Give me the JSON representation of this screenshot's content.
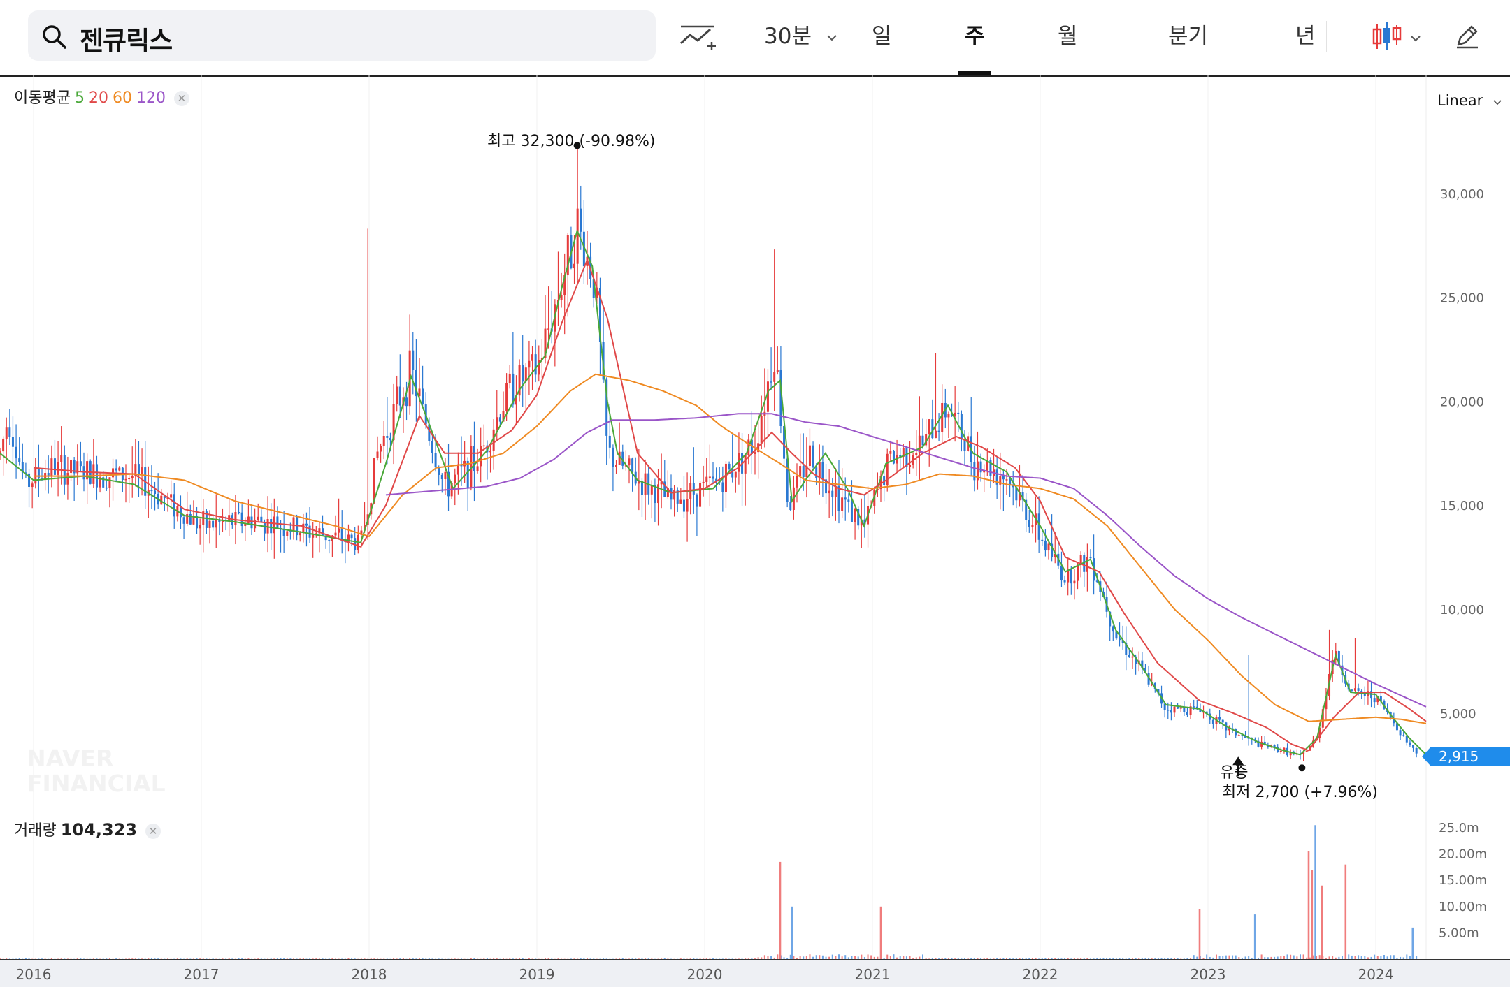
{
  "search": {
    "query": "젠큐릭스"
  },
  "toolbar": {
    "interval_label": "30분",
    "tabs": [
      "일",
      "주",
      "월",
      "분기",
      "년"
    ],
    "active_tab": "주"
  },
  "indicators": {
    "ma_label": "이동평균",
    "ma_periods": [
      {
        "label": "5",
        "color": "#4aa839"
      },
      {
        "label": "20",
        "color": "#e04848"
      },
      {
        "label": "60",
        "color": "#ef8a22"
      },
      {
        "label": "120",
        "color": "#9a55c8"
      }
    ],
    "volume_label": "거래량",
    "volume_value": "104,323"
  },
  "scale": {
    "label": "Linear"
  },
  "current_price": "2,915",
  "annotations": {
    "high": "최고  32,300 (-90.98%)",
    "low": "최저  2,700 (+7.96%)",
    "event": "유증"
  },
  "watermark": [
    "NAVER",
    "FINANCIAL"
  ],
  "colors": {
    "up": "#e63b3b",
    "down": "#2a78d2",
    "ma5": "#4aa839",
    "ma20": "#e04848",
    "ma60": "#ef8a22",
    "ma120": "#9a55c8",
    "accent": "#1f8ceb"
  },
  "chart_data": {
    "type": "candlestick",
    "x_ticks": [
      "2016",
      "2017",
      "2018",
      "2019",
      "2020",
      "2021",
      "2022",
      "2023",
      "2024"
    ],
    "x_tick_pos": [
      2016.0,
      2017.0,
      2018.0,
      2019.0,
      2020.0,
      2021.0,
      2022.0,
      2023.0,
      2024.0
    ],
    "x_range": [
      2015.8,
      2024.3
    ],
    "price_axis": {
      "ticks": [
        5000,
        10000,
        15000,
        20000,
        25000,
        30000
      ],
      "tick_labels": [
        "5,000",
        "10,000",
        "15,000",
        "20,000",
        "25,000",
        "30,000"
      ],
      "ylim": [
        1400,
        35000
      ]
    },
    "volume_axis": {
      "ticks": [
        5,
        10,
        15,
        20,
        25
      ],
      "tick_labels": [
        "5.00m",
        "10.00m",
        "15.00m",
        "20.00m",
        "25.0m"
      ],
      "ylim": [
        0,
        27
      ],
      "unit": "m"
    },
    "price_anchors": [
      [
        2015.8,
        17500
      ],
      [
        2015.85,
        19300
      ],
      [
        2015.95,
        16000
      ],
      [
        2016.1,
        16800
      ],
      [
        2016.35,
        16500
      ],
      [
        2016.6,
        16400
      ],
      [
        2016.8,
        15200
      ],
      [
        2017.0,
        14000
      ],
      [
        2017.3,
        14300
      ],
      [
        2017.6,
        13800
      ],
      [
        2017.95,
        13200
      ],
      [
        2018.05,
        17500
      ],
      [
        2018.25,
        21500
      ],
      [
        2018.45,
        15800
      ],
      [
        2018.65,
        17200
      ],
      [
        2018.85,
        20800
      ],
      [
        2019.0,
        21500
      ],
      [
        2019.15,
        25800
      ],
      [
        2019.24,
        28500
      ],
      [
        2019.35,
        25500
      ],
      [
        2019.42,
        17500
      ],
      [
        2019.6,
        16200
      ],
      [
        2019.8,
        15200
      ],
      [
        2020.1,
        16200
      ],
      [
        2020.3,
        18000
      ],
      [
        2020.42,
        22500
      ],
      [
        2020.5,
        14800
      ],
      [
        2020.62,
        17500
      ],
      [
        2020.8,
        15500
      ],
      [
        2020.95,
        13900
      ],
      [
        2021.1,
        17200
      ],
      [
        2021.3,
        17900
      ],
      [
        2021.45,
        19800
      ],
      [
        2021.6,
        17200
      ],
      [
        2021.8,
        16400
      ],
      [
        2022.0,
        13500
      ],
      [
        2022.15,
        11500
      ],
      [
        2022.3,
        12500
      ],
      [
        2022.45,
        8800
      ],
      [
        2022.6,
        7100
      ],
      [
        2022.75,
        5200
      ],
      [
        2022.95,
        5200
      ],
      [
        2023.1,
        4300
      ],
      [
        2023.3,
        3500
      ],
      [
        2023.45,
        3200
      ],
      [
        2023.55,
        2900
      ],
      [
        2023.65,
        3800
      ],
      [
        2023.75,
        8000
      ],
      [
        2023.85,
        6000
      ],
      [
        2024.0,
        5800
      ],
      [
        2024.1,
        4600
      ],
      [
        2024.2,
        3500
      ],
      [
        2024.26,
        2915
      ]
    ],
    "ma_series": [
      {
        "name": "5",
        "points": [
          [
            2015.8,
            17500
          ],
          [
            2016.0,
            16200
          ],
          [
            2016.3,
            16400
          ],
          [
            2016.6,
            16000
          ],
          [
            2016.9,
            14500
          ],
          [
            2017.2,
            14200
          ],
          [
            2017.6,
            13700
          ],
          [
            2017.95,
            13200
          ],
          [
            2018.1,
            17000
          ],
          [
            2018.25,
            21200
          ],
          [
            2018.4,
            18000
          ],
          [
            2018.5,
            15800
          ],
          [
            2018.7,
            17600
          ],
          [
            2018.9,
            20600
          ],
          [
            2019.05,
            22200
          ],
          [
            2019.15,
            25500
          ],
          [
            2019.24,
            28200
          ],
          [
            2019.33,
            26500
          ],
          [
            2019.42,
            20000
          ],
          [
            2019.48,
            17500
          ],
          [
            2019.6,
            16200
          ],
          [
            2019.8,
            15600
          ],
          [
            2020.05,
            15800
          ],
          [
            2020.25,
            17500
          ],
          [
            2020.38,
            20500
          ],
          [
            2020.45,
            21000
          ],
          [
            2020.52,
            15200
          ],
          [
            2020.6,
            16200
          ],
          [
            2020.72,
            17500
          ],
          [
            2020.85,
            15800
          ],
          [
            2020.95,
            14000
          ],
          [
            2021.08,
            17000
          ],
          [
            2021.3,
            17800
          ],
          [
            2021.45,
            19800
          ],
          [
            2021.6,
            17500
          ],
          [
            2021.8,
            16600
          ],
          [
            2022.0,
            14000
          ],
          [
            2022.15,
            11800
          ],
          [
            2022.3,
            12400
          ],
          [
            2022.45,
            9000
          ],
          [
            2022.6,
            7300
          ],
          [
            2022.75,
            5400
          ],
          [
            2022.95,
            5200
          ],
          [
            2023.1,
            4400
          ],
          [
            2023.3,
            3600
          ],
          [
            2023.45,
            3200
          ],
          [
            2023.55,
            3000
          ],
          [
            2023.65,
            3800
          ],
          [
            2023.76,
            7800
          ],
          [
            2023.85,
            6000
          ],
          [
            2024.0,
            5900
          ],
          [
            2024.1,
            4800
          ],
          [
            2024.2,
            3800
          ],
          [
            2024.3,
            3000
          ]
        ]
      },
      {
        "name": "20",
        "points": [
          [
            2016.0,
            16800
          ],
          [
            2016.3,
            16600
          ],
          [
            2016.6,
            16500
          ],
          [
            2016.9,
            14800
          ],
          [
            2017.2,
            14300
          ],
          [
            2017.6,
            14000
          ],
          [
            2017.95,
            13000
          ],
          [
            2018.1,
            15000
          ],
          [
            2018.3,
            19300
          ],
          [
            2018.45,
            17500
          ],
          [
            2018.65,
            17500
          ],
          [
            2018.85,
            18600
          ],
          [
            2019.0,
            20300
          ],
          [
            2019.15,
            23800
          ],
          [
            2019.3,
            26800
          ],
          [
            2019.42,
            24000
          ],
          [
            2019.6,
            17500
          ],
          [
            2019.8,
            15600
          ],
          [
            2020.0,
            15800
          ],
          [
            2020.2,
            16800
          ],
          [
            2020.4,
            18500
          ],
          [
            2020.52,
            17500
          ],
          [
            2020.65,
            16500
          ],
          [
            2020.8,
            15800
          ],
          [
            2020.95,
            15500
          ],
          [
            2021.1,
            16300
          ],
          [
            2021.3,
            17500
          ],
          [
            2021.5,
            18300
          ],
          [
            2021.65,
            17800
          ],
          [
            2021.85,
            16800
          ],
          [
            2022.0,
            15200
          ],
          [
            2022.15,
            12500
          ],
          [
            2022.35,
            11800
          ],
          [
            2022.5,
            9800
          ],
          [
            2022.7,
            7400
          ],
          [
            2022.95,
            5600
          ],
          [
            2023.15,
            5000
          ],
          [
            2023.35,
            4300
          ],
          [
            2023.5,
            3500
          ],
          [
            2023.6,
            3200
          ],
          [
            2023.75,
            4800
          ],
          [
            2023.9,
            6000
          ],
          [
            2024.05,
            6000
          ],
          [
            2024.2,
            5200
          ],
          [
            2024.3,
            4600
          ]
        ]
      },
      {
        "name": "60",
        "points": [
          [
            2016.0,
            16400
          ],
          [
            2016.3,
            16400
          ],
          [
            2016.6,
            16500
          ],
          [
            2016.9,
            16200
          ],
          [
            2017.2,
            15200
          ],
          [
            2017.5,
            14600
          ],
          [
            2017.8,
            14000
          ],
          [
            2018.0,
            13500
          ],
          [
            2018.2,
            15500
          ],
          [
            2018.4,
            16800
          ],
          [
            2018.6,
            17000
          ],
          [
            2018.8,
            17500
          ],
          [
            2019.0,
            18800
          ],
          [
            2019.2,
            20500
          ],
          [
            2019.35,
            21300
          ],
          [
            2019.55,
            21000
          ],
          [
            2019.75,
            20500
          ],
          [
            2019.95,
            19800
          ],
          [
            2020.1,
            18800
          ],
          [
            2020.25,
            18000
          ],
          [
            2020.45,
            17000
          ],
          [
            2020.6,
            16200
          ],
          [
            2020.8,
            16000
          ],
          [
            2021.0,
            15800
          ],
          [
            2021.2,
            16000
          ],
          [
            2021.4,
            16500
          ],
          [
            2021.6,
            16400
          ],
          [
            2021.8,
            16000
          ],
          [
            2022.0,
            15800
          ],
          [
            2022.2,
            15300
          ],
          [
            2022.4,
            14000
          ],
          [
            2022.6,
            12000
          ],
          [
            2022.8,
            10000
          ],
          [
            2023.0,
            8500
          ],
          [
            2023.2,
            6800
          ],
          [
            2023.4,
            5400
          ],
          [
            2023.6,
            4600
          ],
          [
            2023.8,
            4700
          ],
          [
            2024.0,
            4800
          ],
          [
            2024.15,
            4700
          ],
          [
            2024.3,
            4500
          ]
        ]
      },
      {
        "name": "120",
        "points": [
          [
            2018.1,
            15500
          ],
          [
            2018.4,
            15700
          ],
          [
            2018.7,
            15900
          ],
          [
            2018.9,
            16300
          ],
          [
            2019.1,
            17200
          ],
          [
            2019.3,
            18500
          ],
          [
            2019.45,
            19100
          ],
          [
            2019.7,
            19100
          ],
          [
            2019.95,
            19200
          ],
          [
            2020.2,
            19400
          ],
          [
            2020.4,
            19400
          ],
          [
            2020.6,
            19000
          ],
          [
            2020.8,
            18800
          ],
          [
            2021.0,
            18300
          ],
          [
            2021.2,
            17800
          ],
          [
            2021.4,
            17300
          ],
          [
            2021.6,
            16800
          ],
          [
            2021.8,
            16400
          ],
          [
            2022.0,
            16300
          ],
          [
            2022.2,
            15800
          ],
          [
            2022.4,
            14500
          ],
          [
            2022.6,
            13000
          ],
          [
            2022.8,
            11600
          ],
          [
            2023.0,
            10500
          ],
          [
            2023.2,
            9600
          ],
          [
            2023.4,
            8800
          ],
          [
            2023.6,
            8000
          ],
          [
            2023.8,
            7200
          ],
          [
            2024.0,
            6400
          ],
          [
            2024.3,
            5300
          ]
        ]
      }
    ],
    "volume_events": [
      [
        2020.45,
        18.5
      ],
      [
        2020.52,
        10
      ],
      [
        2021.05,
        10
      ],
      [
        2022.95,
        9.5
      ],
      [
        2023.28,
        8.5
      ],
      [
        2023.6,
        20.5
      ],
      [
        2023.62,
        17
      ],
      [
        2023.64,
        25.5
      ],
      [
        2023.68,
        14
      ],
      [
        2023.82,
        18
      ],
      [
        2024.22,
        6
      ]
    ],
    "volume_baseline": 0.7
  }
}
